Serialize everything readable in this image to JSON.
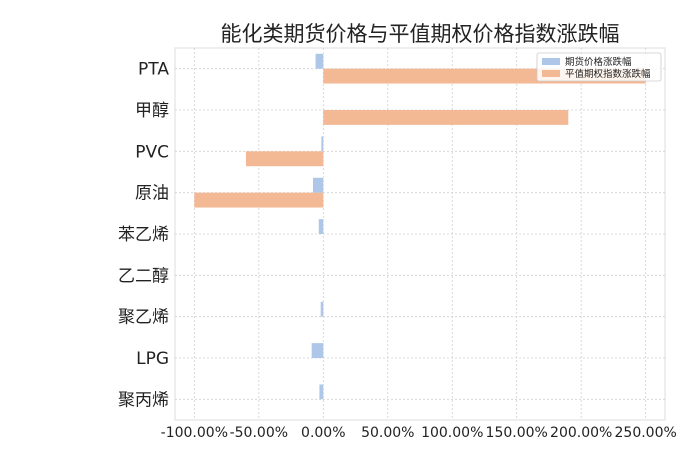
{
  "chart_data": {
    "type": "bar",
    "orientation": "horizontal",
    "title": "能化类期货价格与平值期权价格指数涨跌幅",
    "categories": [
      "PTA",
      "甲醇",
      "PVC",
      "原油",
      "苯乙烯",
      "乙二醇",
      "聚乙烯",
      "LPG",
      "聚丙烯"
    ],
    "series": [
      {
        "name": "期货价格涨跌幅",
        "color": "#aec7e8",
        "values": [
          -6.0,
          0.0,
          -1.5,
          -8.0,
          -3.5,
          0.0,
          -2.0,
          -9.0,
          -3.0
        ]
      },
      {
        "name": "平值期权指数涨跌幅",
        "color": "#f3b995",
        "values": [
          250.0,
          190.0,
          -60.0,
          -100.0,
          0.0,
          0.0,
          0.0,
          0.0,
          0.0
        ]
      }
    ],
    "xlim": [
      -115,
      265
    ],
    "xticks": [
      -100,
      -50,
      0,
      50,
      100,
      150,
      200,
      250
    ],
    "xtick_labels": [
      "-100.00%",
      "-50.00%",
      "0.00%",
      "50.00%",
      "100.00%",
      "150.00%",
      "200.00%",
      "250.00%"
    ],
    "xlabel": "",
    "ylabel": "",
    "grid": true,
    "legend_position": "top-right"
  }
}
